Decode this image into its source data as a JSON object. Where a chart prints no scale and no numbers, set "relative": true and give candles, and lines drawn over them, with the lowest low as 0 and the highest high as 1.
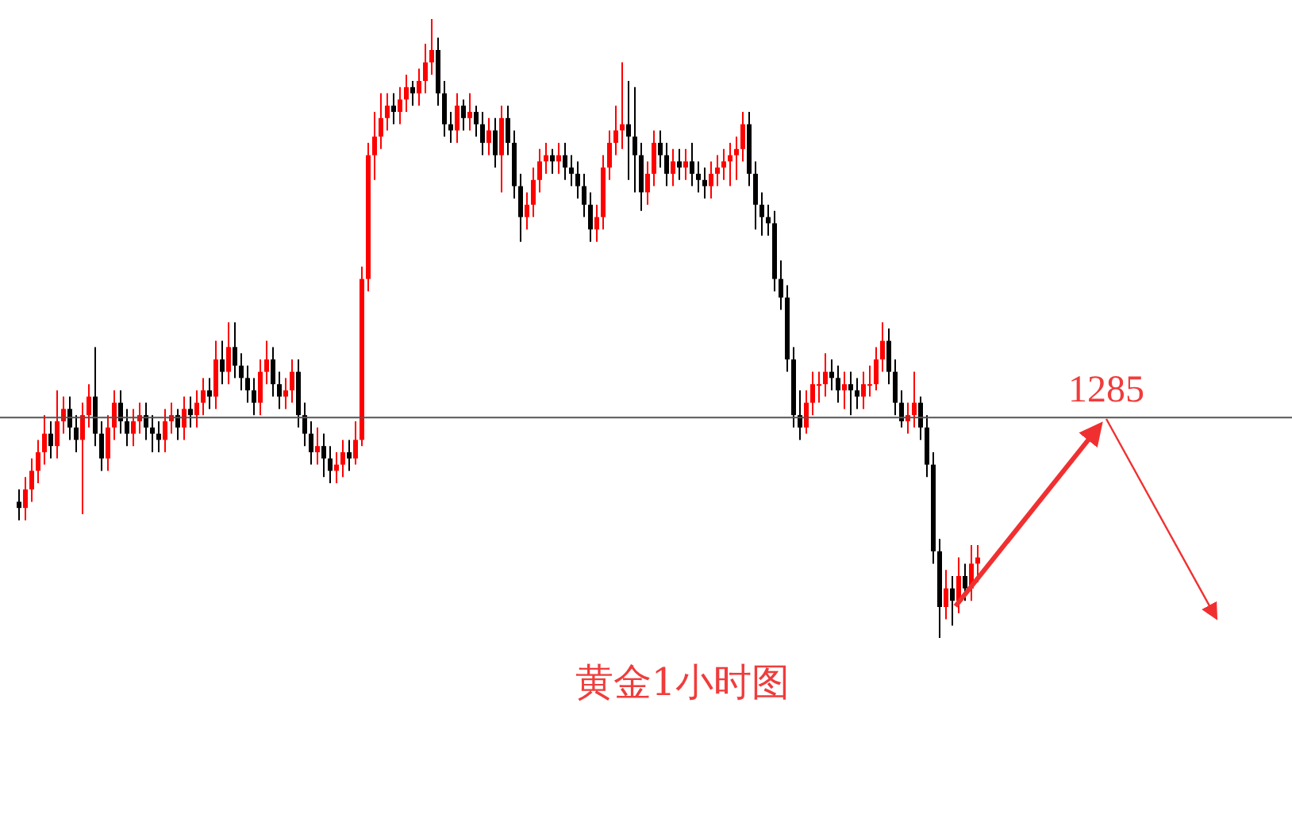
{
  "chart_data": {
    "type": "candlestick",
    "relative": true,
    "tick_labels": false,
    "categories": [
      null,
      null,
      null,
      null,
      null,
      null,
      null,
      null,
      null,
      null,
      null,
      null,
      null,
      null,
      null,
      null,
      null,
      null,
      null,
      null,
      null,
      null,
      null,
      null,
      null,
      null,
      null,
      null,
      null,
      null,
      null,
      null,
      null,
      null,
      null,
      null,
      null,
      null,
      null,
      null,
      null,
      null,
      null,
      null,
      null,
      null,
      null,
      null,
      null,
      null,
      null,
      null,
      null,
      null,
      null,
      null,
      null,
      null,
      null,
      null,
      null,
      null,
      null,
      null,
      null,
      null,
      null,
      null,
      null,
      null,
      null,
      null,
      null,
      null,
      null,
      null,
      null,
      null,
      null,
      null,
      null,
      null,
      null,
      null,
      null,
      null,
      null,
      null,
      null,
      null,
      null,
      null,
      null,
      null,
      null,
      null,
      null,
      null,
      null,
      null,
      null,
      null,
      null,
      null,
      null,
      null,
      null,
      null,
      null,
      null,
      null,
      null,
      null,
      null,
      null,
      null,
      null,
      null,
      null,
      null,
      null,
      null,
      null,
      null,
      null,
      null,
      null,
      null,
      null,
      null,
      null,
      null,
      null,
      null,
      null,
      null,
      null,
      null,
      null,
      null,
      null,
      null,
      null,
      null,
      null,
      null,
      null,
      null,
      null,
      null,
      null,
      null
    ],
    "ohlc": [
      [
        0.22,
        0.24,
        0.19,
        0.21
      ],
      [
        0.21,
        0.26,
        0.19,
        0.24
      ],
      [
        0.24,
        0.29,
        0.22,
        0.27
      ],
      [
        0.27,
        0.32,
        0.25,
        0.3
      ],
      [
        0.3,
        0.36,
        0.28,
        0.33
      ],
      [
        0.33,
        0.35,
        0.29,
        0.31
      ],
      [
        0.31,
        0.4,
        0.29,
        0.35
      ],
      [
        0.35,
        0.39,
        0.33,
        0.37
      ],
      [
        0.37,
        0.39,
        0.32,
        0.34
      ],
      [
        0.34,
        0.36,
        0.3,
        0.32
      ],
      [
        0.32,
        0.38,
        0.2,
        0.36
      ],
      [
        0.36,
        0.41,
        0.34,
        0.39
      ],
      [
        0.39,
        0.47,
        0.31,
        0.33
      ],
      [
        0.33,
        0.35,
        0.27,
        0.29
      ],
      [
        0.29,
        0.36,
        0.27,
        0.34
      ],
      [
        0.34,
        0.4,
        0.32,
        0.38
      ],
      [
        0.38,
        0.4,
        0.33,
        0.35
      ],
      [
        0.35,
        0.37,
        0.31,
        0.33
      ],
      [
        0.33,
        0.37,
        0.31,
        0.35
      ],
      [
        0.35,
        0.38,
        0.33,
        0.36
      ],
      [
        0.36,
        0.38,
        0.32,
        0.34
      ],
      [
        0.34,
        0.36,
        0.3,
        0.33
      ],
      [
        0.33,
        0.35,
        0.3,
        0.32
      ],
      [
        0.32,
        0.37,
        0.3,
        0.35
      ],
      [
        0.35,
        0.38,
        0.33,
        0.36
      ],
      [
        0.36,
        0.37,
        0.32,
        0.34
      ],
      [
        0.34,
        0.39,
        0.32,
        0.37
      ],
      [
        0.37,
        0.39,
        0.34,
        0.36
      ],
      [
        0.36,
        0.4,
        0.34,
        0.38
      ],
      [
        0.38,
        0.42,
        0.36,
        0.4
      ],
      [
        0.4,
        0.42,
        0.37,
        0.39
      ],
      [
        0.39,
        0.48,
        0.37,
        0.45
      ],
      [
        0.45,
        0.48,
        0.41,
        0.43
      ],
      [
        0.43,
        0.51,
        0.41,
        0.47
      ],
      [
        0.47,
        0.51,
        0.42,
        0.44
      ],
      [
        0.44,
        0.46,
        0.4,
        0.42
      ],
      [
        0.42,
        0.44,
        0.38,
        0.4
      ],
      [
        0.4,
        0.42,
        0.36,
        0.38
      ],
      [
        0.38,
        0.45,
        0.36,
        0.43
      ],
      [
        0.43,
        0.48,
        0.41,
        0.45
      ],
      [
        0.45,
        0.47,
        0.39,
        0.41
      ],
      [
        0.41,
        0.43,
        0.37,
        0.39
      ],
      [
        0.39,
        0.42,
        0.37,
        0.4
      ],
      [
        0.4,
        0.45,
        0.38,
        0.43
      ],
      [
        0.43,
        0.45,
        0.34,
        0.36
      ],
      [
        0.36,
        0.38,
        0.31,
        0.33
      ],
      [
        0.33,
        0.35,
        0.28,
        0.3
      ],
      [
        0.3,
        0.34,
        0.28,
        0.31
      ],
      [
        0.31,
        0.33,
        0.26,
        0.29
      ],
      [
        0.29,
        0.31,
        0.25,
        0.27
      ],
      [
        0.27,
        0.3,
        0.25,
        0.28
      ],
      [
        0.28,
        0.32,
        0.26,
        0.3
      ],
      [
        0.3,
        0.32,
        0.27,
        0.29
      ],
      [
        0.29,
        0.35,
        0.28,
        0.32
      ],
      [
        0.32,
        0.6,
        0.31,
        0.58
      ],
      [
        0.58,
        0.8,
        0.56,
        0.78
      ],
      [
        0.78,
        0.85,
        0.74,
        0.81
      ],
      [
        0.81,
        0.88,
        0.79,
        0.84
      ],
      [
        0.84,
        0.88,
        0.82,
        0.86
      ],
      [
        0.86,
        0.88,
        0.83,
        0.85
      ],
      [
        0.85,
        0.89,
        0.83,
        0.87
      ],
      [
        0.87,
        0.91,
        0.85,
        0.89
      ],
      [
        0.89,
        0.9,
        0.86,
        0.88
      ],
      [
        0.88,
        0.92,
        0.86,
        0.9
      ],
      [
        0.9,
        0.96,
        0.88,
        0.93
      ],
      [
        0.93,
        1.0,
        0.91,
        0.95
      ],
      [
        0.95,
        0.97,
        0.86,
        0.88
      ],
      [
        0.88,
        0.9,
        0.81,
        0.83
      ],
      [
        0.83,
        0.85,
        0.8,
        0.82
      ],
      [
        0.82,
        0.88,
        0.8,
        0.86
      ],
      [
        0.86,
        0.87,
        0.82,
        0.84
      ],
      [
        0.84,
        0.88,
        0.82,
        0.85
      ],
      [
        0.85,
        0.86,
        0.81,
        0.83
      ],
      [
        0.83,
        0.85,
        0.78,
        0.8
      ],
      [
        0.8,
        0.84,
        0.78,
        0.82
      ],
      [
        0.82,
        0.84,
        0.76,
        0.78
      ],
      [
        0.78,
        0.86,
        0.72,
        0.84
      ],
      [
        0.84,
        0.86,
        0.78,
        0.8
      ],
      [
        0.8,
        0.82,
        0.71,
        0.73
      ],
      [
        0.73,
        0.75,
        0.64,
        0.68
      ],
      [
        0.68,
        0.72,
        0.66,
        0.7
      ],
      [
        0.7,
        0.76,
        0.68,
        0.74
      ],
      [
        0.74,
        0.79,
        0.72,
        0.77
      ],
      [
        0.77,
        0.8,
        0.75,
        0.78
      ],
      [
        0.78,
        0.79,
        0.75,
        0.77
      ],
      [
        0.77,
        0.8,
        0.75,
        0.78
      ],
      [
        0.78,
        0.8,
        0.74,
        0.76
      ],
      [
        0.76,
        0.78,
        0.73,
        0.75
      ],
      [
        0.75,
        0.77,
        0.71,
        0.73
      ],
      [
        0.73,
        0.75,
        0.68,
        0.7
      ],
      [
        0.7,
        0.72,
        0.64,
        0.66
      ],
      [
        0.66,
        0.7,
        0.64,
        0.68
      ],
      [
        0.68,
        0.78,
        0.66,
        0.76
      ],
      [
        0.76,
        0.82,
        0.74,
        0.8
      ],
      [
        0.8,
        0.86,
        0.78,
        0.82
      ],
      [
        0.82,
        0.93,
        0.79,
        0.83
      ],
      [
        0.83,
        0.9,
        0.74,
        0.81
      ],
      [
        0.81,
        0.89,
        0.72,
        0.78
      ],
      [
        0.78,
        0.8,
        0.69,
        0.72
      ],
      [
        0.72,
        0.77,
        0.7,
        0.75
      ],
      [
        0.75,
        0.82,
        0.73,
        0.8
      ],
      [
        0.8,
        0.82,
        0.76,
        0.78
      ],
      [
        0.78,
        0.8,
        0.73,
        0.75
      ],
      [
        0.75,
        0.79,
        0.73,
        0.77
      ],
      [
        0.77,
        0.79,
        0.74,
        0.76
      ],
      [
        0.76,
        0.79,
        0.74,
        0.77
      ],
      [
        0.77,
        0.8,
        0.73,
        0.75
      ],
      [
        0.75,
        0.77,
        0.72,
        0.74
      ],
      [
        0.74,
        0.76,
        0.71,
        0.73
      ],
      [
        0.73,
        0.77,
        0.71,
        0.75
      ],
      [
        0.75,
        0.78,
        0.73,
        0.76
      ],
      [
        0.76,
        0.79,
        0.74,
        0.77
      ],
      [
        0.77,
        0.8,
        0.73,
        0.78
      ],
      [
        0.78,
        0.81,
        0.74,
        0.79
      ],
      [
        0.79,
        0.85,
        0.77,
        0.83
      ],
      [
        0.83,
        0.85,
        0.73,
        0.75
      ],
      [
        0.75,
        0.77,
        0.66,
        0.7
      ],
      [
        0.7,
        0.72,
        0.65,
        0.68
      ],
      [
        0.68,
        0.7,
        0.65,
        0.67
      ],
      [
        0.67,
        0.69,
        0.56,
        0.58
      ],
      [
        0.58,
        0.61,
        0.53,
        0.55
      ],
      [
        0.55,
        0.57,
        0.43,
        0.45
      ],
      [
        0.45,
        0.47,
        0.34,
        0.36
      ],
      [
        0.36,
        0.4,
        0.32,
        0.34
      ],
      [
        0.34,
        0.4,
        0.33,
        0.38
      ],
      [
        0.38,
        0.43,
        0.36,
        0.41
      ],
      [
        0.41,
        0.43,
        0.38,
        0.41
      ],
      [
        0.41,
        0.46,
        0.39,
        0.43
      ],
      [
        0.43,
        0.45,
        0.4,
        0.42
      ],
      [
        0.42,
        0.44,
        0.38,
        0.4
      ],
      [
        0.4,
        0.43,
        0.37,
        0.41
      ],
      [
        0.41,
        0.43,
        0.36,
        0.4
      ],
      [
        0.4,
        0.42,
        0.37,
        0.39
      ],
      [
        0.39,
        0.43,
        0.37,
        0.41
      ],
      [
        0.41,
        0.44,
        0.39,
        0.41
      ],
      [
        0.41,
        0.47,
        0.4,
        0.45
      ],
      [
        0.45,
        0.51,
        0.43,
        0.48
      ],
      [
        0.48,
        0.5,
        0.41,
        0.43
      ],
      [
        0.43,
        0.45,
        0.36,
        0.38
      ],
      [
        0.38,
        0.4,
        0.34,
        0.35
      ],
      [
        0.35,
        0.38,
        0.33,
        0.36
      ],
      [
        0.36,
        0.43,
        0.34,
        0.38
      ],
      [
        0.38,
        0.39,
        0.32,
        0.34
      ],
      [
        0.34,
        0.36,
        0.26,
        0.28
      ],
      [
        0.28,
        0.3,
        0.12,
        0.14
      ],
      [
        0.14,
        0.16,
        0.0,
        0.05
      ],
      [
        0.05,
        0.11,
        0.03,
        0.08
      ],
      [
        0.08,
        0.1,
        0.02,
        0.06
      ],
      [
        0.06,
        0.13,
        0.04,
        0.1
      ],
      [
        0.1,
        0.12,
        0.06,
        0.08
      ],
      [
        0.08,
        0.15,
        0.06,
        0.12
      ],
      [
        0.12,
        0.15,
        0.09,
        0.13
      ]
    ],
    "ref_lines": [
      {
        "axis": "y",
        "value": 0.356,
        "color": "#555555"
      }
    ],
    "annotations": [
      "1285",
      "黄金1小时图"
    ]
  }
}
